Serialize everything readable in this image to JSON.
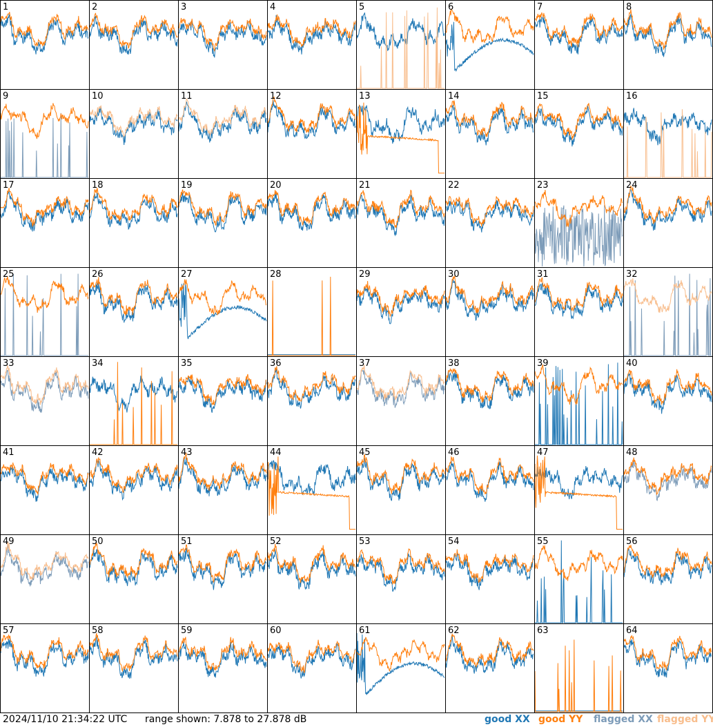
{
  "chart_data": {
    "type": "line",
    "grid": {
      "rows": 8,
      "cols": 8
    },
    "antenna_labels": [
      "1",
      "2",
      "3",
      "4",
      "5",
      "6",
      "7",
      "8",
      "9",
      "10",
      "11",
      "12",
      "13",
      "14",
      "15",
      "16",
      "17",
      "18",
      "19",
      "20",
      "21",
      "22",
      "23",
      "24",
      "25",
      "26",
      "27",
      "28",
      "29",
      "30",
      "31",
      "32",
      "33",
      "34",
      "35",
      "36",
      "37",
      "38",
      "39",
      "40",
      "41",
      "42",
      "43",
      "44",
      "45",
      "46",
      "47",
      "48",
      "49",
      "50",
      "51",
      "52",
      "53",
      "54",
      "55",
      "56",
      "57",
      "58",
      "59",
      "60",
      "61",
      "62",
      "63",
      "64"
    ],
    "ylim_db": [
      7.878,
      27.878
    ],
    "series_styles": {
      "good_xx": {
        "label": "good XX",
        "color": "#1f77b4"
      },
      "good_yy": {
        "label": "good YY",
        "color": "#ff7f0e"
      },
      "flagged_xx": {
        "label": "flagged XX",
        "color": "#7c9bb8"
      },
      "flagged_yy": {
        "label": "flagged YY",
        "color": "#f8bd8c"
      }
    },
    "panel_states": {
      "5": {
        "xx": "good",
        "yy": "flagged",
        "yy_shape": "spiky"
      },
      "6": {
        "xx": "good",
        "yy": "good",
        "xx_shape": "dip"
      },
      "9": {
        "xx": "flagged",
        "yy": "good",
        "xx_shape": "spiky"
      },
      "10": {
        "xx": "good",
        "yy": "flagged"
      },
      "11": {
        "xx": "good",
        "yy": "flagged"
      },
      "13": {
        "xx": "good",
        "yy": "good",
        "yy_shape": "decay"
      },
      "16": {
        "xx": "good",
        "yy": "flagged",
        "yy_shape": "spiky"
      },
      "23": {
        "xx": "flagged",
        "yy": "good",
        "xx_shape": "noisy"
      },
      "25": {
        "xx": "flagged",
        "yy": "good",
        "xx_shape": "spiky"
      },
      "27": {
        "xx": "good",
        "yy": "good",
        "xx_shape": "dip"
      },
      "28": {
        "xx": "good",
        "yy": "good",
        "xx_shape": "flat",
        "yy_shape": "spiky"
      },
      "32": {
        "xx": "flagged",
        "yy": "flagged",
        "xx_shape": "spiky"
      },
      "33": {
        "xx": "flagged",
        "yy": "flagged"
      },
      "34": {
        "xx": "good",
        "yy": "good",
        "yy_shape": "spiky"
      },
      "37": {
        "xx": "flagged",
        "yy": "flagged"
      },
      "39": {
        "xx": "good",
        "yy": "good",
        "xx_shape": "spiky"
      },
      "44": {
        "xx": "good",
        "yy": "good",
        "yy_shape": "decay"
      },
      "47": {
        "xx": "good",
        "yy": "good",
        "yy_shape": "decay"
      },
      "48": {
        "xx": "flagged",
        "yy": "good"
      },
      "49": {
        "xx": "flagged",
        "yy": "flagged"
      },
      "55": {
        "xx": "good",
        "yy": "good",
        "xx_shape": "spiky"
      },
      "61": {
        "xx": "good",
        "yy": "good",
        "xx_shape": "dip"
      },
      "63": {
        "xx": "good",
        "yy": "good",
        "xx_shape": "flat",
        "yy_shape": "spiky"
      }
    }
  },
  "footer": {
    "timestamp": "2024/11/10 21:34:22 UTC",
    "range_text": "range shown: 7.878 to 27.878 dB"
  }
}
